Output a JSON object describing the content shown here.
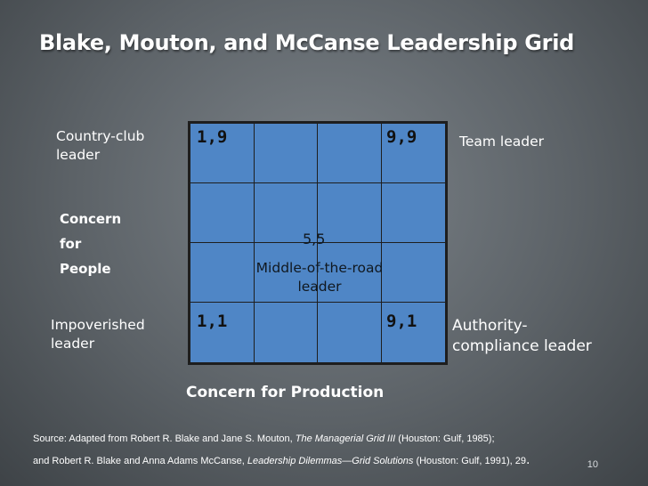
{
  "title": "Blake, Mouton, and McCanse Leadership Grid",
  "labels": {
    "country_club": [
      "Country-club",
      "leader"
    ],
    "team": "Team leader",
    "concern_people": [
      "Concern",
      "for",
      "People"
    ],
    "impoverished": [
      "Impoverished",
      "leader"
    ],
    "authority": [
      "Authority-",
      "compliance leader"
    ],
    "middle": [
      "Middle-of-the-road",
      "leader"
    ]
  },
  "grid": {
    "coord_1_9": "1,9",
    "coord_9_9": "9,9",
    "coord_5_5": "5,5",
    "coord_1_1": "1,1",
    "coord_9_1": "9,1"
  },
  "axis_label": "Concern for Production",
  "source": {
    "line1_pre": "Source: Adapted from Robert R. Blake and Jane S. Mouton, ",
    "line1_title": "The Managerial Grid III",
    "line1_post": " (Houston: Gulf, 1985);",
    "line2_pre": "and Robert R. Blake and Anna Adams McCanse, ",
    "line2_title": "Leadership Dilemmas—Grid Solutions",
    "line2_post": " (Houston: Gulf, 1991), 29",
    "line2_end": "."
  },
  "page_number": "10",
  "colors": {
    "grid_fill": "#4f86c6",
    "grid_line": "#1e1e1e",
    "background": "#5c6267"
  }
}
